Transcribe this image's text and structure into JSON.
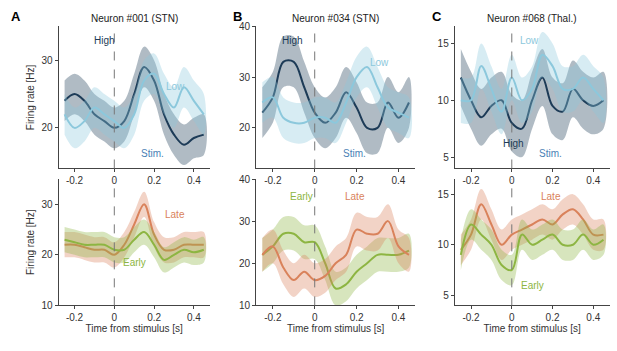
{
  "chart_data": [
    {
      "type": "line",
      "panel": "A",
      "title": "Neuron #001 (STN)",
      "ylabel": "Firing rate [Hz]",
      "annotations": [
        "Stim."
      ],
      "stimulus_onset": 0,
      "x": [
        -0.25,
        -0.2,
        -0.15,
        -0.1,
        -0.05,
        0,
        0.05,
        0.1,
        0.15,
        0.2,
        0.25,
        0.3,
        0.35,
        0.4,
        0.45
      ],
      "xlim": [
        -0.28,
        0.48
      ],
      "xticks": [
        -0.2,
        0,
        0.2,
        0.4
      ],
      "ylim": [
        14,
        35
      ],
      "yticks": [
        20,
        30
      ],
      "grid": false,
      "series": [
        {
          "name": "High",
          "color": "#1d3b57",
          "values": [
            24,
            25,
            24,
            22,
            21,
            20,
            21,
            25,
            29,
            27,
            22,
            19,
            17.5,
            18.5,
            19
          ],
          "error": [
            3,
            3,
            3,
            3,
            3,
            3,
            3,
            3,
            3,
            3,
            3,
            3,
            3,
            3,
            3
          ]
        },
        {
          "name": "Low",
          "color": "#8cc8dc",
          "values": [
            22,
            20,
            21,
            23,
            22,
            21,
            20,
            22,
            27,
            28,
            25,
            23,
            26,
            24,
            22
          ],
          "error": [
            3,
            3,
            3,
            3,
            3,
            3,
            3,
            3,
            3,
            3,
            3,
            3,
            3,
            3,
            3
          ]
        }
      ]
    },
    {
      "type": "line",
      "panel": "B",
      "title": "Neuron #034 (STN)",
      "annotations": [
        "Stim."
      ],
      "stimulus_onset": 0,
      "x": [
        -0.25,
        -0.2,
        -0.15,
        -0.1,
        -0.05,
        0,
        0.05,
        0.1,
        0.15,
        0.2,
        0.25,
        0.3,
        0.35,
        0.4,
        0.45
      ],
      "xlim": [
        -0.28,
        0.48
      ],
      "xticks": [
        -0.2,
        0,
        0.2,
        0.4
      ],
      "ylim": [
        12,
        40
      ],
      "yticks": [
        20,
        30,
        40
      ],
      "grid": false,
      "series": [
        {
          "name": "High",
          "color": "#1d3b57",
          "values": [
            23,
            26,
            33,
            33,
            28,
            23,
            21,
            23,
            27,
            24,
            20,
            20,
            25,
            22,
            25
          ],
          "error": [
            5,
            5,
            5,
            5,
            5,
            5,
            5,
            5,
            5,
            5,
            5,
            5,
            5,
            5,
            5
          ]
        },
        {
          "name": "Low",
          "color": "#8cc8dc",
          "values": [
            25,
            26,
            22,
            21,
            21,
            22,
            22,
            21,
            25,
            30,
            32,
            28,
            24,
            23,
            22
          ],
          "error": [
            4,
            4,
            4,
            4,
            4,
            4,
            4,
            4,
            4,
            4,
            4,
            4,
            4,
            4,
            4
          ]
        }
      ]
    },
    {
      "type": "line",
      "panel": "C",
      "title": "Neuron #068 (Thal.)",
      "annotations": [
        "Stim."
      ],
      "stimulus_onset": 0,
      "x": [
        -0.25,
        -0.2,
        -0.15,
        -0.1,
        -0.05,
        0,
        0.05,
        0.1,
        0.15,
        0.2,
        0.25,
        0.3,
        0.35,
        0.4,
        0.45
      ],
      "xlim": [
        -0.28,
        0.48
      ],
      "xticks": [
        -0.2,
        0,
        0.2,
        0.4
      ],
      "ylim": [
        4,
        16.5
      ],
      "yticks": [
        5,
        10,
        15
      ],
      "grid": false,
      "series": [
        {
          "name": "High",
          "color": "#1d3b57",
          "values": [
            12,
            10,
            8.5,
            9.5,
            10,
            8,
            7.5,
            10,
            12,
            9.5,
            9,
            11,
            10,
            9.5,
            10
          ],
          "error": [
            2.5,
            2.5,
            2.5,
            2.5,
            2.5,
            2.5,
            2.5,
            2.5,
            2.5,
            2.5,
            2.5,
            2.5,
            2.5,
            2.5,
            2.5
          ]
        },
        {
          "name": "Low",
          "color": "#8cc8dc",
          "values": [
            10,
            10,
            13,
            11,
            9,
            12,
            10,
            11,
            14,
            13,
            11,
            11,
            12,
            11,
            10
          ],
          "error": [
            2,
            2,
            2,
            2,
            2,
            2,
            2,
            2,
            2,
            2,
            2,
            2,
            2,
            2,
            2
          ]
        }
      ]
    },
    {
      "type": "line",
      "ylabel": "Firing rate [Hz]",
      "xlabel": "Time from stimulus [s]",
      "stimulus_onset": 0,
      "x": [
        -0.25,
        -0.2,
        -0.15,
        -0.1,
        -0.05,
        0,
        0.05,
        0.1,
        0.15,
        0.2,
        0.25,
        0.3,
        0.35,
        0.4,
        0.45
      ],
      "xlim": [
        -0.28,
        0.48
      ],
      "xticks": [
        -0.2,
        0,
        0.2,
        0.4
      ],
      "ylim": [
        10,
        35
      ],
      "yticks": [
        10,
        20,
        30
      ],
      "grid": false,
      "series": [
        {
          "name": "Late",
          "color": "#d9825b",
          "values": [
            22,
            22,
            21.5,
            21,
            21,
            20,
            22,
            26,
            30,
            24,
            21,
            21,
            22,
            22,
            22
          ],
          "error": [
            2.5,
            2.5,
            2.5,
            2.5,
            2.5,
            2.5,
            2.5,
            2.5,
            2.5,
            2.5,
            2.5,
            2.5,
            2.5,
            2.5,
            2.5
          ]
        },
        {
          "name": "Early",
          "color": "#8db542",
          "values": [
            23,
            22.5,
            22,
            22,
            22,
            21,
            21,
            23,
            24.5,
            22,
            19,
            20,
            21,
            20.5,
            21
          ],
          "error": [
            2.5,
            2.5,
            2.5,
            2.5,
            2.5,
            2.5,
            2.5,
            2.5,
            2.5,
            2.5,
            2.5,
            2.5,
            2.5,
            2.5,
            2.5
          ]
        }
      ]
    },
    {
      "type": "line",
      "xlabel": "Time from stimulus [s]",
      "stimulus_onset": 0,
      "x": [
        -0.25,
        -0.2,
        -0.15,
        -0.1,
        -0.05,
        0,
        0.05,
        0.1,
        0.15,
        0.2,
        0.25,
        0.3,
        0.35,
        0.4,
        0.45
      ],
      "xlim": [
        -0.28,
        0.48
      ],
      "xticks": [
        -0.2,
        0,
        0.2,
        0.4
      ],
      "ylim": [
        10,
        40
      ],
      "yticks": [
        10,
        20,
        30,
        40
      ],
      "grid": false,
      "series": [
        {
          "name": "Early",
          "color": "#8db542",
          "values": [
            22,
            24,
            27,
            27,
            25,
            25,
            20,
            14,
            15,
            18,
            20,
            22,
            22,
            22,
            23
          ],
          "error": [
            4,
            4,
            4,
            4,
            4,
            4,
            4,
            4,
            4,
            4,
            4,
            4,
            4,
            4,
            4
          ]
        },
        {
          "name": "Late",
          "color": "#d9825b",
          "values": [
            22,
            24,
            19,
            16,
            18,
            16,
            17,
            20,
            22,
            28,
            27,
            27,
            30,
            24,
            22
          ],
          "error": [
            4,
            4,
            4,
            4,
            4,
            4,
            4,
            4,
            4,
            4,
            4,
            4,
            4,
            4,
            4
          ]
        }
      ]
    },
    {
      "type": "line",
      "xlabel": "Time from stimulus [s]",
      "stimulus_onset": 0,
      "x": [
        -0.25,
        -0.2,
        -0.15,
        -0.1,
        -0.05,
        0,
        0.05,
        0.1,
        0.15,
        0.2,
        0.25,
        0.3,
        0.35,
        0.4,
        0.45
      ],
      "xlim": [
        -0.28,
        0.48
      ],
      "xticks": [
        -0.2,
        0,
        0.2,
        0.4
      ],
      "ylim": [
        4,
        16.5
      ],
      "yticks": [
        5,
        10,
        15
      ],
      "grid": false,
      "series": [
        {
          "name": "Late",
          "color": "#d9825b",
          "values": [
            9.5,
            11,
            14,
            12,
            10,
            11,
            11.5,
            12,
            12.5,
            12,
            13,
            13.5,
            12.5,
            11,
            11
          ],
          "error": [
            1.5,
            1.5,
            1.5,
            1.5,
            1.5,
            1.5,
            1.5,
            1.5,
            1.5,
            1.5,
            1.5,
            1.5,
            1.5,
            1.5,
            1.5
          ]
        },
        {
          "name": "Early",
          "color": "#8db542",
          "values": [
            9,
            12,
            11,
            10,
            8,
            7.5,
            11,
            10,
            10.5,
            11,
            10,
            10,
            11,
            10,
            10.5
          ],
          "error": [
            1.5,
            1.5,
            1.5,
            1.5,
            1.5,
            1.5,
            1.5,
            1.5,
            1.5,
            1.5,
            1.5,
            1.5,
            1.5,
            1.5,
            1.5
          ]
        }
      ]
    }
  ]
}
